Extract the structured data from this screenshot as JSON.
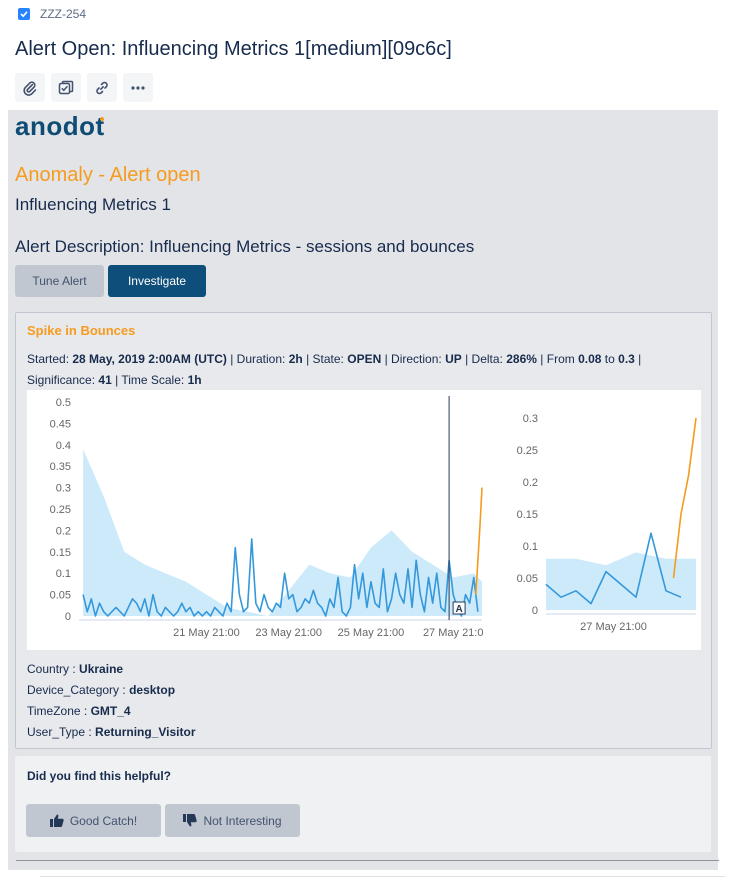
{
  "ticket": {
    "key": "ZZZ-254"
  },
  "title": "Alert Open: Influencing Metrics 1[medium][09c6c]",
  "toolbar": {
    "icons": [
      "paperclip-icon",
      "checklist-icon",
      "link-icon",
      "more-icon"
    ]
  },
  "brand": {
    "logo_text": "anodot"
  },
  "alert": {
    "status_heading": "Anomaly - Alert open",
    "name": "Influencing Metrics 1",
    "description": "Alert Description: Influencing Metrics - sessions and bounces",
    "buttons": {
      "tune": "Tune Alert",
      "investigate": "Investigate"
    }
  },
  "anomaly": {
    "title": "Spike in Bounces",
    "started_label": "Started:",
    "started": "28 May, 2019 2:00AM (UTC)",
    "duration_label": "Duration:",
    "duration": "2h",
    "state_label": "State:",
    "state": "OPEN",
    "direction_label": "Direction:",
    "direction": "UP",
    "delta_label": "Delta:",
    "delta": "286%",
    "from_label": "From",
    "from": "0.08",
    "to_label": "to",
    "to": "0.3",
    "significance_label": "Significance:",
    "significance": "41",
    "timescale_label": "Time Scale:",
    "timescale": "1h",
    "marker": "A"
  },
  "dimensions": [
    {
      "key": "Country",
      "value": "Ukraine"
    },
    {
      "key": "Device_Category",
      "value": "desktop"
    },
    {
      "key": "TimeZone",
      "value": "GMT_4"
    },
    {
      "key": "User_Type",
      "value": "Returning_Visitor"
    }
  ],
  "feedback": {
    "question": "Did you find this helpful?",
    "good": "Good Catch!",
    "bad": "Not Interesting"
  },
  "colors": {
    "accent_orange": "#f59b1e",
    "line_blue": "#3498db",
    "band_blue": "#cdeafb",
    "investigate_bg": "#0e4e7a"
  },
  "chart_data": [
    {
      "type": "line",
      "xlabel": "",
      "ylabel": "",
      "ylim": [
        0,
        0.5
      ],
      "yticks": [
        "0.5",
        "0.45",
        "0.4",
        "0.35",
        "0.3",
        "0.25",
        "0.2",
        "0.15",
        "0.1",
        "0.05",
        "0"
      ],
      "xticks": [
        {
          "label": "21 May 21:00",
          "x": 3.0
        },
        {
          "label": "23 May 21:00",
          "x": 5.0
        },
        {
          "label": "25 May 21:00",
          "x": 7.0
        },
        {
          "label": "27 May 21:0",
          "x": 9.0
        }
      ],
      "xlim": [
        -0.1,
        9.7
      ],
      "series": [
        {
          "role": "line",
          "color": "#3498db",
          "x": [
            0.0,
            0.1,
            0.2,
            0.3,
            0.4,
            0.5,
            0.6,
            0.7,
            0.8,
            0.9,
            1.0,
            1.1,
            1.2,
            1.3,
            1.4,
            1.5,
            1.6,
            1.7,
            1.8,
            1.9,
            2.0,
            2.1,
            2.2,
            2.3,
            2.4,
            2.5,
            2.6,
            2.7,
            2.8,
            2.9,
            3.0,
            3.1,
            3.2,
            3.3,
            3.4,
            3.5,
            3.6,
            3.7,
            3.8,
            3.9,
            4.0,
            4.1,
            4.2,
            4.3,
            4.4,
            4.5,
            4.6,
            4.7,
            4.8,
            4.9,
            5.0,
            5.1,
            5.2,
            5.3,
            5.4,
            5.5,
            5.6,
            5.7,
            5.8,
            5.9,
            6.0,
            6.1,
            6.2,
            6.3,
            6.4,
            6.5,
            6.6,
            6.7,
            6.8,
            6.9,
            7.0,
            7.1,
            7.2,
            7.3,
            7.4,
            7.5,
            7.6,
            7.7,
            7.8,
            7.9,
            8.0,
            8.1,
            8.2,
            8.3,
            8.4,
            8.5,
            8.6,
            8.7,
            8.8,
            8.9,
            9.0,
            9.1,
            9.2,
            9.3,
            9.4,
            9.5,
            9.6
          ],
          "y": [
            0.05,
            0.01,
            0.04,
            0.0,
            0.03,
            0.01,
            0.0,
            0.01,
            0.02,
            0.01,
            0.0,
            0.02,
            0.04,
            0.03,
            0.01,
            0.04,
            0.0,
            0.05,
            0.01,
            0.0,
            0.02,
            0.01,
            0.0,
            0.01,
            0.03,
            0.01,
            0.02,
            0.0,
            0.01,
            0.0,
            0.01,
            0.0,
            0.02,
            0.01,
            0.0,
            0.03,
            0.01,
            0.16,
            0.05,
            0.01,
            0.02,
            0.18,
            0.03,
            0.01,
            0.05,
            0.02,
            0.01,
            0.03,
            0.02,
            0.1,
            0.04,
            0.05,
            0.01,
            0.02,
            0.04,
            0.03,
            0.06,
            0.03,
            0.02,
            0.0,
            0.04,
            0.02,
            0.09,
            0.01,
            0.0,
            0.02,
            0.12,
            0.04,
            0.1,
            0.02,
            0.08,
            0.03,
            0.02,
            0.11,
            0.01,
            0.04,
            0.1,
            0.05,
            0.03,
            0.11,
            0.02,
            0.13,
            0.05,
            0.01,
            0.09,
            0.03,
            0.1,
            0.02,
            0.01,
            0.13,
            0.05,
            0.02,
            0.0,
            0.05,
            0.03,
            0.09,
            0.01
          ]
        },
        {
          "role": "anomaly",
          "color": "#f59b1e",
          "x": [
            9.55,
            9.6,
            9.65,
            9.7
          ],
          "y": [
            0.05,
            0.13,
            0.21,
            0.3
          ]
        }
      ],
      "baseline_band_upper": {
        "x": [
          0.0,
          0.5,
          1.0,
          1.5,
          2.0,
          2.5,
          3.0,
          3.5,
          4.0,
          4.5,
          5.0,
          5.5,
          6.0,
          6.5,
          7.0,
          7.5,
          8.0,
          8.5,
          9.0,
          9.5,
          9.7
        ],
        "y": [
          0.39,
          0.28,
          0.15,
          0.12,
          0.1,
          0.08,
          0.05,
          0.02,
          0.01,
          0.0,
          0.06,
          0.12,
          0.1,
          0.09,
          0.16,
          0.2,
          0.15,
          0.12,
          0.09,
          0.1,
          0.08
        ]
      }
    },
    {
      "type": "line",
      "xlabel": "",
      "ylabel": "",
      "ylim": [
        0,
        0.3
      ],
      "yticks": [
        "0.3",
        "0.25",
        "0.2",
        "0.15",
        "0.1",
        "0.05",
        "0"
      ],
      "xticks": [
        {
          "label": "27 May 21:00",
          "x": 4.5
        }
      ],
      "xlim": [
        0,
        10
      ],
      "series": [
        {
          "role": "line",
          "color": "#3498db",
          "x": [
            0,
            1,
            2,
            3,
            4,
            5,
            6,
            7,
            8,
            9
          ],
          "y": [
            0.04,
            0.02,
            0.03,
            0.01,
            0.06,
            0.04,
            0.02,
            0.12,
            0.03,
            0.02
          ]
        },
        {
          "role": "anomaly",
          "color": "#f59b1e",
          "x": [
            8.5,
            9.0,
            9.5,
            10.0
          ],
          "y": [
            0.05,
            0.15,
            0.21,
            0.3
          ]
        }
      ],
      "baseline_band_upper": {
        "x": [
          0,
          2,
          4,
          6,
          8,
          10
        ],
        "y": [
          0.08,
          0.08,
          0.07,
          0.09,
          0.08,
          0.08
        ]
      }
    }
  ]
}
